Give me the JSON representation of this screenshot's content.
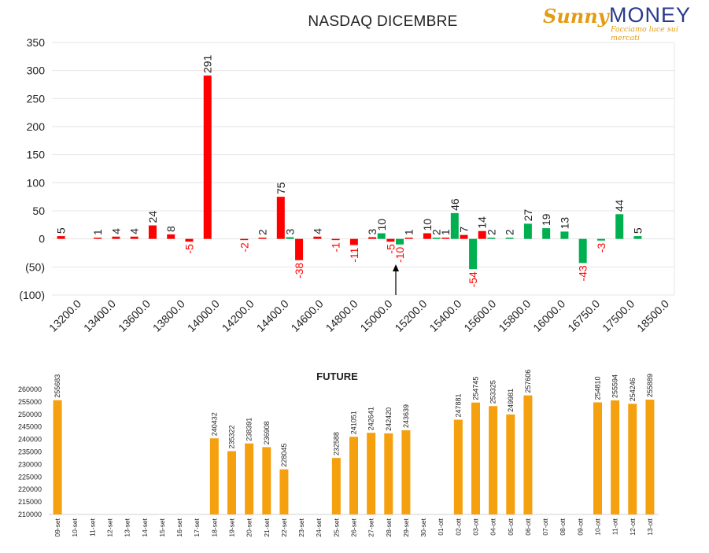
{
  "logo": {
    "brand_left": "Sunny",
    "brand_right": "MONEY",
    "tagline": "Facciamo luce sui mercati"
  },
  "colors": {
    "red": "#ff0000",
    "green": "#00b050",
    "orange": "#f5a00f",
    "grid": "#e6e6e6",
    "neg_label": "#ff0000"
  },
  "chart_data": [
    {
      "type": "bar",
      "title": "NASDAQ DICEMBRE",
      "ylim": [
        -100,
        350
      ],
      "yticks": [
        350,
        300,
        250,
        200,
        150,
        100,
        50,
        0,
        -50,
        -100
      ],
      "ytick_labels": [
        "350",
        "300",
        "250",
        "200",
        "150",
        "100",
        "50",
        "0",
        "(50)",
        "(100)"
      ],
      "xtick_labels": [
        "13200.0",
        "13400.0",
        "13600.0",
        "13800.0",
        "14000.0",
        "14200.0",
        "14400.0",
        "14600.0",
        "14800.0",
        "15000.0",
        "15200.0",
        "15400.0",
        "15600.0",
        "15800.0",
        "16000.0",
        "16750.0",
        "17500.0",
        "18500.0"
      ],
      "grid": true,
      "bars": [
        {
          "slot": 0,
          "value": 5,
          "color": "red"
        },
        {
          "slot": 2,
          "value": 1,
          "color": "red"
        },
        {
          "slot": 3,
          "value": 4,
          "color": "red"
        },
        {
          "slot": 4,
          "value": 4,
          "color": "red"
        },
        {
          "slot": 5,
          "value": 24,
          "color": "red"
        },
        {
          "slot": 6,
          "value": 8,
          "color": "red"
        },
        {
          "slot": 7,
          "value": -5,
          "color": "red"
        },
        {
          "slot": 8,
          "value": 291,
          "color": "red"
        },
        {
          "slot": 10,
          "value": -2,
          "color": "red"
        },
        {
          "slot": 11,
          "value": 2,
          "color": "red"
        },
        {
          "slot": 12,
          "value": 75,
          "color": "red"
        },
        {
          "slot": 12.5,
          "value": 3,
          "color": "green"
        },
        {
          "slot": 13,
          "value": -38,
          "color": "red"
        },
        {
          "slot": 14,
          "value": 4,
          "color": "red"
        },
        {
          "slot": 15,
          "value": -1,
          "color": "red"
        },
        {
          "slot": 16,
          "value": -11,
          "color": "red"
        },
        {
          "slot": 17,
          "value": 3,
          "color": "red"
        },
        {
          "slot": 17.5,
          "value": 10,
          "color": "green"
        },
        {
          "slot": 18,
          "value": -5,
          "color": "red"
        },
        {
          "slot": 18.5,
          "value": -10,
          "color": "green"
        },
        {
          "slot": 19,
          "value": 1,
          "color": "red"
        },
        {
          "slot": 20,
          "value": 10,
          "color": "red"
        },
        {
          "slot": 20.5,
          "value": 2,
          "color": "green"
        },
        {
          "slot": 21,
          "value": 1,
          "color": "red"
        },
        {
          "slot": 21.5,
          "value": 46,
          "color": "green"
        },
        {
          "slot": 22,
          "value": 7,
          "color": "red"
        },
        {
          "slot": 22.5,
          "value": -54,
          "color": "green"
        },
        {
          "slot": 23,
          "value": 14,
          "color": "red"
        },
        {
          "slot": 23.5,
          "value": 2,
          "color": "green"
        },
        {
          "slot": 24.5,
          "value": 2,
          "color": "green"
        },
        {
          "slot": 25.5,
          "value": 27,
          "color": "green"
        },
        {
          "slot": 26.5,
          "value": 19,
          "color": "green"
        },
        {
          "slot": 27.5,
          "value": 13,
          "color": "green"
        },
        {
          "slot": 28.5,
          "value": -43,
          "color": "green"
        },
        {
          "slot": 29.5,
          "value": -3,
          "color": "green"
        },
        {
          "slot": 30.5,
          "value": 44,
          "color": "green"
        },
        {
          "slot": 31.5,
          "value": 5,
          "color": "green"
        }
      ]
    },
    {
      "type": "bar",
      "title": "FUTURE",
      "ylim": [
        210000,
        260000
      ],
      "yticks": [
        260000,
        255000,
        250000,
        245000,
        240000,
        235000,
        230000,
        225000,
        220000,
        215000,
        210000
      ],
      "categories": [
        "09-set",
        "10-set",
        "11-set",
        "12-set",
        "13-set",
        "14-set",
        "15-set",
        "16-set",
        "17-set",
        "18-set",
        "19-set",
        "20-set",
        "21-set",
        "22-set",
        "23-set",
        "24-set",
        "25-set",
        "26-set",
        "27-set",
        "28-set",
        "29-set",
        "30-set",
        "01-ott",
        "02-ott",
        "03-ott",
        "04-ott",
        "05-ott",
        "06-ott",
        "07-ott",
        "08-ott",
        "09-ott",
        "10-ott",
        "11-ott",
        "12-ott",
        "13-ott"
      ],
      "values": [
        255683,
        null,
        null,
        null,
        null,
        null,
        null,
        null,
        null,
        240432,
        235322,
        238391,
        236908,
        228045,
        null,
        null,
        232588,
        241051,
        242641,
        242420,
        243639,
        null,
        null,
        247881,
        254745,
        253325,
        249981,
        257606,
        null,
        null,
        null,
        254810,
        255594,
        254246,
        255889
      ],
      "grid": false
    }
  ]
}
